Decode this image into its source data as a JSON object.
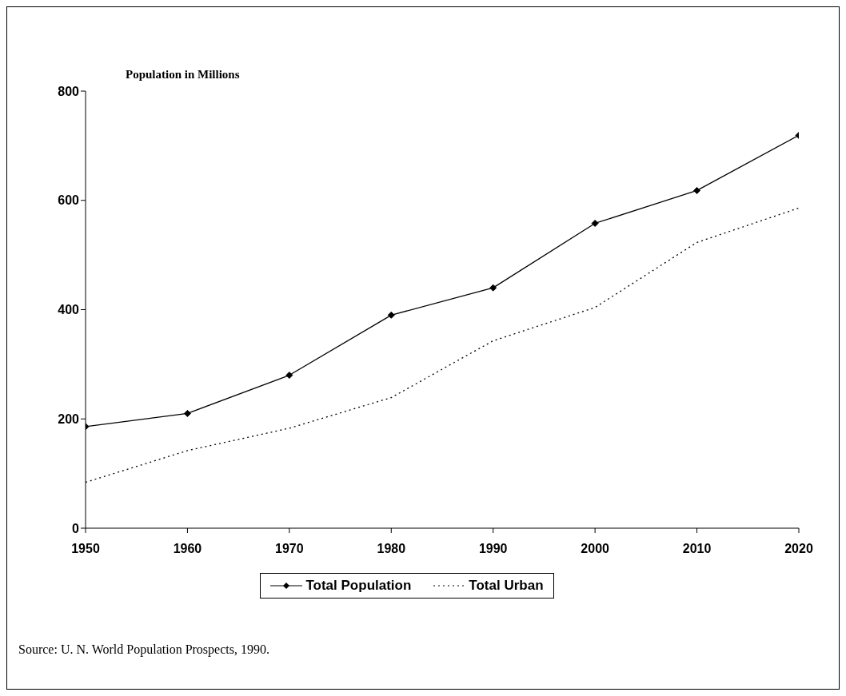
{
  "chart_data": {
    "type": "line",
    "ylabel": "Population in Millions",
    "x": [
      1950,
      1960,
      1970,
      1980,
      1990,
      2000,
      2010,
      2020
    ],
    "xlim": [
      1950,
      2020
    ],
    "xticks": [
      1950,
      1960,
      1970,
      1980,
      1990,
      2000,
      2010,
      2020
    ],
    "ylim": [
      0,
      800
    ],
    "yticks": [
      0,
      200,
      400,
      600,
      800
    ],
    "series": [
      {
        "name": "Total Population",
        "color": "#000000",
        "marker": "diamond",
        "line_style": "solid",
        "values": [
          186,
          210,
          280,
          390,
          440,
          558,
          618,
          719
        ]
      },
      {
        "name": "Total Urban",
        "color": "#000000",
        "marker": "none",
        "line_style": "dotted",
        "values": [
          84,
          142,
          183,
          239,
          343,
          404,
          523,
          586
        ]
      }
    ],
    "grid": false,
    "legend": "bottom",
    "annotations": [
      "Source: U. N. World Population Prospects, 1990."
    ]
  }
}
